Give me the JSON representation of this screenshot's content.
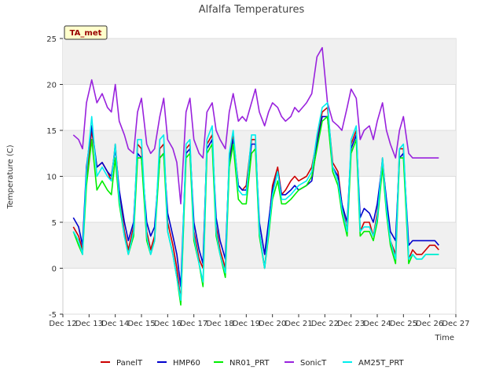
{
  "chart_data": {
    "type": "line",
    "title": "Alfalfa Temperatures",
    "badge": "TA_met",
    "xlabel": "Time",
    "ylabel": "Temperature (C)",
    "xlim": [
      12,
      27
    ],
    "ylim": [
      -5,
      25
    ],
    "x_ticks": [
      12,
      13,
      14,
      15,
      16,
      17,
      18,
      19,
      20,
      21,
      22,
      23,
      24,
      25,
      26,
      27
    ],
    "x_tick_labels": [
      "Dec 12",
      "Dec 13",
      "Dec 14",
      "Dec 15",
      "Dec 16",
      "Dec 17",
      "Dec 18",
      "Dec 19",
      "Dec 20",
      "Dec 21",
      "Dec 22",
      "Dec 23",
      "Dec 24",
      "Dec 25",
      "Dec 26",
      "Dec 27"
    ],
    "y_ticks": [
      -5,
      0,
      5,
      10,
      15,
      20,
      25
    ],
    "y_tick_labels": [
      "-5",
      "0",
      "5",
      "10",
      "15",
      "20",
      "25"
    ],
    "grid": true,
    "legend_position": "bottom",
    "series": [
      {
        "name": "PanelT",
        "color": "#cc0000",
        "x": [
          12.4,
          12.6,
          12.75,
          12.9,
          13.1,
          13.3,
          13.5,
          13.7,
          13.85,
          14.0,
          14.15,
          14.35,
          14.5,
          14.7,
          14.85,
          15.0,
          15.2,
          15.35,
          15.5,
          15.7,
          15.85,
          16.0,
          16.2,
          16.35,
          16.5,
          16.7,
          16.85,
          17.0,
          17.2,
          17.35,
          17.5,
          17.7,
          17.85,
          18.0,
          18.2,
          18.35,
          18.5,
          18.7,
          18.85,
          19.0,
          19.2,
          19.35,
          19.5,
          19.7,
          19.85,
          20.0,
          20.2,
          20.35,
          20.5,
          20.7,
          20.85,
          21.0,
          21.3,
          21.5,
          21.7,
          21.9,
          22.1,
          22.3,
          22.5,
          22.65,
          22.85,
          23.0,
          23.2,
          23.35,
          23.5,
          23.7,
          23.85,
          24.0,
          24.2,
          24.35,
          24.5,
          24.7,
          24.85,
          25.0,
          25.2,
          25.35,
          25.5,
          25.7,
          25.85,
          26.0,
          26.2,
          26.35
        ],
        "y": [
          4.5,
          3.5,
          2.0,
          10.0,
          15.0,
          11.0,
          11.5,
          10.5,
          9.5,
          13.5,
          8.0,
          4.0,
          2.0,
          4.5,
          13.5,
          13.0,
          4.0,
          2.0,
          3.5,
          13.0,
          13.5,
          5.0,
          2.5,
          0.0,
          -3.5,
          13.0,
          13.5,
          4.0,
          1.0,
          0.0,
          13.5,
          14.5,
          4.5,
          2.0,
          0.0,
          12.0,
          14.5,
          9.0,
          8.5,
          9.0,
          14.0,
          14.0,
          4.0,
          0.0,
          4.5,
          9.0,
          11.0,
          8.0,
          8.5,
          9.5,
          10.0,
          9.5,
          10.0,
          11.0,
          14.0,
          17.0,
          17.5,
          11.5,
          10.5,
          7.0,
          4.0,
          13.5,
          15.0,
          4.0,
          5.0,
          5.0,
          3.5,
          6.0,
          12.0,
          7.0,
          3.0,
          1.5,
          13.0,
          13.0,
          1.0,
          2.0,
          1.5,
          1.5,
          2.0,
          2.5,
          2.5,
          2.0
        ]
      },
      {
        "name": "HMP60",
        "color": "#0000cc",
        "x": [
          12.4,
          12.6,
          12.75,
          12.9,
          13.1,
          13.3,
          13.5,
          13.7,
          13.85,
          14.0,
          14.15,
          14.35,
          14.5,
          14.7,
          14.85,
          15.0,
          15.2,
          15.35,
          15.5,
          15.7,
          15.85,
          16.0,
          16.2,
          16.35,
          16.5,
          16.7,
          16.85,
          17.0,
          17.2,
          17.35,
          17.5,
          17.7,
          17.85,
          18.0,
          18.2,
          18.35,
          18.5,
          18.7,
          18.85,
          19.0,
          19.2,
          19.35,
          19.5,
          19.7,
          19.85,
          20.0,
          20.2,
          20.35,
          20.5,
          20.7,
          20.85,
          21.0,
          21.3,
          21.5,
          21.7,
          21.9,
          22.1,
          22.3,
          22.5,
          22.65,
          22.85,
          23.0,
          23.2,
          23.35,
          23.5,
          23.7,
          23.85,
          24.0,
          24.2,
          24.35,
          24.5,
          24.7,
          24.85,
          25.0,
          25.2,
          25.35,
          25.5,
          25.7,
          25.85,
          26.0,
          26.2,
          26.35
        ],
        "y": [
          5.5,
          4.5,
          2.5,
          11.0,
          15.5,
          11.0,
          11.5,
          10.5,
          10.0,
          13.0,
          8.5,
          5.0,
          3.0,
          5.0,
          12.5,
          12.0,
          5.0,
          3.5,
          4.5,
          12.0,
          12.5,
          6.0,
          3.5,
          1.5,
          -2.0,
          12.5,
          13.0,
          5.0,
          2.0,
          0.5,
          13.0,
          14.0,
          5.5,
          3.0,
          1.0,
          11.5,
          14.0,
          9.0,
          8.5,
          8.5,
          13.5,
          13.5,
          5.0,
          1.5,
          5.0,
          8.5,
          10.5,
          8.0,
          8.0,
          8.5,
          9.0,
          8.5,
          9.0,
          9.5,
          13.5,
          16.5,
          16.5,
          11.0,
          10.0,
          7.0,
          5.0,
          13.0,
          14.5,
          5.5,
          6.5,
          6.0,
          5.0,
          7.0,
          11.5,
          7.5,
          4.0,
          3.0,
          12.0,
          12.5,
          2.5,
          3.0,
          3.0,
          3.0,
          3.0,
          3.0,
          3.0,
          2.5
        ]
      },
      {
        "name": "NR01_PRT",
        "color": "#00ee00",
        "x": [
          12.4,
          12.6,
          12.75,
          12.9,
          13.1,
          13.3,
          13.5,
          13.7,
          13.85,
          14.0,
          14.15,
          14.35,
          14.5,
          14.7,
          14.85,
          15.0,
          15.2,
          15.35,
          15.5,
          15.7,
          15.85,
          16.0,
          16.2,
          16.35,
          16.5,
          16.7,
          16.85,
          17.0,
          17.2,
          17.35,
          17.5,
          17.7,
          17.85,
          18.0,
          18.2,
          18.35,
          18.5,
          18.7,
          18.85,
          19.0,
          19.2,
          19.35,
          19.5,
          19.7,
          19.85,
          20.0,
          20.2,
          20.35,
          20.5,
          20.7,
          20.85,
          21.0,
          21.3,
          21.5,
          21.7,
          21.9,
          22.1,
          22.3,
          22.5,
          22.65,
          22.85,
          23.0,
          23.2,
          23.35,
          23.5,
          23.7,
          23.85,
          24.0,
          24.2,
          24.35,
          24.5,
          24.7,
          24.85,
          25.0,
          25.2,
          25.35,
          25.5,
          25.7,
          25.85,
          26.0,
          26.2,
          26.35
        ],
        "y": [
          4.0,
          2.5,
          1.5,
          9.0,
          14.0,
          8.5,
          9.5,
          8.5,
          8.0,
          12.0,
          7.0,
          3.5,
          1.5,
          3.5,
          12.0,
          12.0,
          3.0,
          1.5,
          3.0,
          12.0,
          12.5,
          4.0,
          1.5,
          -1.0,
          -4.0,
          12.0,
          12.5,
          3.0,
          0.5,
          -2.0,
          12.5,
          13.5,
          3.5,
          1.5,
          -1.0,
          11.0,
          13.5,
          7.5,
          7.0,
          7.0,
          12.5,
          13.0,
          3.5,
          0.0,
          3.5,
          7.5,
          9.5,
          7.0,
          7.0,
          7.5,
          8.0,
          8.5,
          9.0,
          10.0,
          13.0,
          16.0,
          16.5,
          10.5,
          9.0,
          6.0,
          3.5,
          12.5,
          14.0,
          3.5,
          4.0,
          4.0,
          3.0,
          5.0,
          11.0,
          6.0,
          2.5,
          0.5,
          12.0,
          12.0,
          0.5,
          1.5,
          1.0,
          1.0,
          1.5,
          1.5,
          1.5,
          1.5
        ]
      },
      {
        "name": "SonicT",
        "color": "#9922dd",
        "x": [
          12.4,
          12.6,
          12.75,
          12.9,
          13.1,
          13.3,
          13.5,
          13.7,
          13.85,
          14.0,
          14.15,
          14.35,
          14.5,
          14.7,
          14.85,
          15.0,
          15.2,
          15.35,
          15.5,
          15.7,
          15.85,
          16.0,
          16.2,
          16.35,
          16.5,
          16.7,
          16.85,
          17.0,
          17.2,
          17.35,
          17.5,
          17.7,
          17.85,
          18.0,
          18.2,
          18.35,
          18.5,
          18.7,
          18.85,
          19.0,
          19.2,
          19.35,
          19.5,
          19.7,
          19.85,
          20.0,
          20.2,
          20.35,
          20.5,
          20.7,
          20.85,
          21.0,
          21.3,
          21.5,
          21.7,
          21.9,
          22.1,
          22.3,
          22.5,
          22.65,
          22.85,
          23.0,
          23.2,
          23.35,
          23.5,
          23.7,
          23.85,
          24.0,
          24.2,
          24.35,
          24.5,
          24.7,
          24.85,
          25.0,
          25.2,
          25.35,
          25.5,
          25.7,
          25.85,
          26.0,
          26.2,
          26.35
        ],
        "y": [
          14.5,
          14.0,
          13.0,
          18.0,
          20.5,
          18.0,
          19.0,
          17.5,
          17.0,
          20.0,
          16.0,
          14.5,
          13.0,
          12.5,
          17.0,
          18.5,
          13.5,
          12.5,
          13.0,
          16.5,
          18.5,
          14.0,
          13.0,
          11.5,
          7.0,
          17.0,
          18.5,
          14.0,
          12.5,
          12.0,
          17.0,
          18.0,
          15.0,
          14.0,
          13.0,
          17.0,
          19.0,
          16.0,
          16.5,
          16.0,
          18.0,
          19.5,
          17.0,
          15.5,
          17.0,
          18.0,
          17.5,
          16.5,
          16.0,
          16.5,
          17.5,
          17.0,
          18.0,
          19.0,
          23.0,
          24.0,
          18.0,
          16.0,
          15.5,
          15.0,
          17.5,
          19.5,
          18.5,
          14.0,
          15.0,
          15.5,
          14.0,
          16.0,
          18.0,
          15.0,
          13.5,
          12.0,
          15.0,
          16.5,
          12.5,
          12.0,
          12.0,
          12.0,
          12.0,
          12.0,
          12.0,
          12.0
        ]
      },
      {
        "name": "AM25T_PRT",
        "color": "#00eeee",
        "x": [
          12.4,
          12.6,
          12.75,
          12.9,
          13.1,
          13.3,
          13.5,
          13.7,
          13.85,
          14.0,
          14.15,
          14.35,
          14.5,
          14.7,
          14.85,
          15.0,
          15.2,
          15.35,
          15.5,
          15.7,
          15.85,
          16.0,
          16.2,
          16.35,
          16.5,
          16.7,
          16.85,
          17.0,
          17.2,
          17.35,
          17.5,
          17.7,
          17.85,
          18.0,
          18.2,
          18.35,
          18.5,
          18.7,
          18.85,
          19.0,
          19.2,
          19.35,
          19.5,
          19.7,
          19.85,
          20.0,
          20.2,
          20.35,
          20.5,
          20.7,
          20.85,
          21.0,
          21.3,
          21.5,
          21.7,
          21.9,
          22.1,
          22.3,
          22.5,
          22.65,
          22.85,
          23.0,
          23.2,
          23.35,
          23.5,
          23.7,
          23.85,
          24.0,
          24.2,
          24.35,
          24.5,
          24.7,
          24.85,
          25.0,
          25.2,
          25.35,
          25.5,
          25.7,
          25.85,
          26.0,
          26.2,
          26.35
        ],
        "y": [
          4.0,
          3.0,
          1.5,
          10.5,
          16.5,
          10.0,
          11.0,
          10.0,
          9.5,
          13.5,
          7.5,
          3.5,
          1.5,
          4.0,
          14.0,
          14.0,
          3.5,
          1.5,
          3.0,
          14.0,
          14.5,
          4.0,
          1.5,
          -1.0,
          -3.5,
          13.5,
          14.0,
          3.5,
          0.5,
          -1.5,
          14.0,
          15.5,
          4.0,
          1.5,
          -0.5,
          12.5,
          15.0,
          8.5,
          8.0,
          8.0,
          14.5,
          14.5,
          4.0,
          0.0,
          4.0,
          8.0,
          10.5,
          7.5,
          7.5,
          8.0,
          8.5,
          9.0,
          9.5,
          10.5,
          14.5,
          17.5,
          18.0,
          11.0,
          9.5,
          6.5,
          4.0,
          14.0,
          15.5,
          4.0,
          4.5,
          4.5,
          3.5,
          5.5,
          12.0,
          6.5,
          3.0,
          1.0,
          13.0,
          13.5,
          1.0,
          1.5,
          1.0,
          1.0,
          1.5,
          1.5,
          1.5,
          1.5
        ]
      }
    ]
  },
  "colors": {
    "plot_bg": "#ffffff",
    "band_bg": "#f0f0f0",
    "grid": "#dddddd",
    "badge_fill": "#ffffcc",
    "badge_text": "#990000"
  }
}
